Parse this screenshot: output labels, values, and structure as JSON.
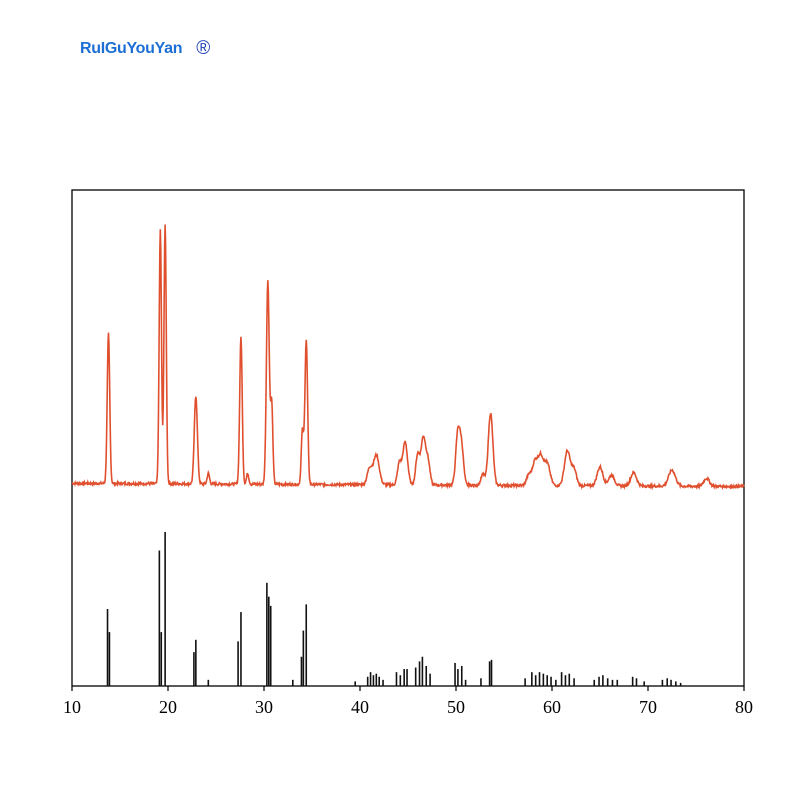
{
  "watermark": {
    "text": "RuIGuYouYan",
    "registered_mark": "®"
  },
  "chart_data": {
    "type": "line",
    "title": "",
    "xlabel": "",
    "ylabel": "",
    "xlim": [
      10,
      80
    ],
    "x_ticks": [
      10,
      20,
      30,
      40,
      50,
      60,
      70,
      80
    ],
    "grid": false,
    "colors": {
      "measured": "#e0502f",
      "reference": "#111111",
      "frame": "#000000"
    },
    "series": [
      {
        "style": "profile",
        "baseline": 1.0,
        "noise": 0.05,
        "peaks": [
          {
            "x": 13.8,
            "h": 5.6,
            "w": 0.13
          },
          {
            "x": 19.2,
            "h": 9.5,
            "w": 0.12
          },
          {
            "x": 19.7,
            "h": 9.7,
            "w": 0.12
          },
          {
            "x": 22.9,
            "h": 3.3,
            "w": 0.16
          },
          {
            "x": 24.2,
            "h": 0.4,
            "w": 0.12
          },
          {
            "x": 27.6,
            "h": 5.5,
            "w": 0.13
          },
          {
            "x": 28.3,
            "h": 0.4,
            "w": 0.12
          },
          {
            "x": 30.4,
            "h": 7.6,
            "w": 0.15
          },
          {
            "x": 30.8,
            "h": 3.0,
            "w": 0.12
          },
          {
            "x": 34.0,
            "h": 2.0,
            "w": 0.12
          },
          {
            "x": 34.4,
            "h": 5.4,
            "w": 0.14
          },
          {
            "x": 41.0,
            "h": 0.6,
            "w": 0.25
          },
          {
            "x": 41.7,
            "h": 1.1,
            "w": 0.3
          },
          {
            "x": 44.1,
            "h": 0.8,
            "w": 0.2
          },
          {
            "x": 44.7,
            "h": 1.6,
            "w": 0.25
          },
          {
            "x": 46.0,
            "h": 1.1,
            "w": 0.2
          },
          {
            "x": 46.6,
            "h": 1.8,
            "w": 0.25
          },
          {
            "x": 47.1,
            "h": 0.8,
            "w": 0.2
          },
          {
            "x": 50.2,
            "h": 2.0,
            "w": 0.22
          },
          {
            "x": 50.6,
            "h": 1.3,
            "w": 0.2
          },
          {
            "x": 52.8,
            "h": 0.4,
            "w": 0.2
          },
          {
            "x": 53.6,
            "h": 2.7,
            "w": 0.24
          },
          {
            "x": 57.6,
            "h": 0.4,
            "w": 0.25
          },
          {
            "x": 58.2,
            "h": 0.8,
            "w": 0.25
          },
          {
            "x": 58.8,
            "h": 1.1,
            "w": 0.3
          },
          {
            "x": 59.5,
            "h": 0.8,
            "w": 0.3
          },
          {
            "x": 61.6,
            "h": 1.3,
            "w": 0.3
          },
          {
            "x": 62.3,
            "h": 0.6,
            "w": 0.25
          },
          {
            "x": 65.0,
            "h": 0.7,
            "w": 0.3
          },
          {
            "x": 66.2,
            "h": 0.4,
            "w": 0.3
          },
          {
            "x": 68.5,
            "h": 0.5,
            "w": 0.3
          },
          {
            "x": 72.5,
            "h": 0.6,
            "w": 0.35
          },
          {
            "x": 76.1,
            "h": 0.3,
            "w": 0.3
          }
        ]
      },
      {
        "style": "sticks",
        "x": [
          13.7,
          13.9,
          19.1,
          19.3,
          19.7,
          22.7,
          22.9,
          24.2,
          27.3,
          27.6,
          30.3,
          30.5,
          30.7,
          33.0,
          33.9,
          34.1,
          34.4,
          39.5,
          40.8,
          41.1,
          41.4,
          41.7,
          42.0,
          42.4,
          43.8,
          44.2,
          44.6,
          44.9,
          45.8,
          46.2,
          46.5,
          46.9,
          47.3,
          49.9,
          50.2,
          50.6,
          51.0,
          52.6,
          53.5,
          53.7,
          57.2,
          57.9,
          58.3,
          58.7,
          59.1,
          59.5,
          59.9,
          60.4,
          61.0,
          61.4,
          61.8,
          62.3,
          64.4,
          64.9,
          65.3,
          65.8,
          66.3,
          66.8,
          68.4,
          68.8,
          69.6,
          71.5,
          72.0,
          72.4,
          72.9,
          73.4
        ],
        "y": [
          50,
          35,
          88,
          35,
          100,
          22,
          30,
          4,
          29,
          48,
          67,
          58,
          52,
          4,
          19,
          36,
          53,
          3,
          6,
          9,
          7,
          8,
          6,
          4,
          9,
          7,
          11,
          11,
          12,
          16,
          19,
          13,
          8,
          15,
          11,
          13,
          4,
          5,
          16,
          17,
          5,
          9,
          7,
          9,
          8,
          7,
          6,
          4,
          9,
          7,
          8,
          5,
          4,
          6,
          7,
          5,
          4,
          4,
          6,
          5,
          3,
          4,
          5,
          4,
          3,
          2
        ]
      }
    ]
  }
}
